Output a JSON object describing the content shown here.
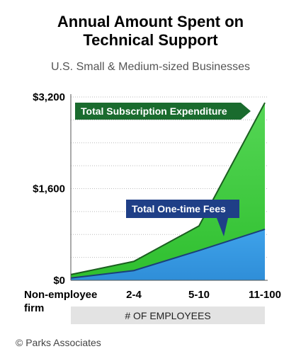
{
  "title_line1": "Annual Amount Spent on",
  "title_line2": "Technical Support",
  "subtitle": "U.S. Small & Medium-sized Businesses",
  "copyright": "© Parks Associates",
  "colors": {
    "subscription": "#2fbf2f",
    "subscription_dark": "#1b5e20",
    "onetime": "#2f8ed8",
    "onetime_dark": "#1b3f7a",
    "label_green": "#1a6b2e",
    "label_blue": "#1f3f87",
    "axis_band": "#e3e3e3"
  },
  "chart_data": {
    "type": "area",
    "x": [
      "Non-employee firm",
      "2-4",
      "5-10",
      "11-100"
    ],
    "series": [
      {
        "name": "Total Subscription Expenditure",
        "values": [
          100,
          330,
          950,
          3100
        ]
      },
      {
        "name": "Total One-time Fees",
        "values": [
          40,
          170,
          520,
          890
        ]
      }
    ],
    "yticks": [
      "$0",
      "$1,600",
      "$3,200"
    ],
    "ylim": [
      0,
      3200
    ],
    "xlabel": "# OF EMPLOYEES",
    "grid": "dotted"
  }
}
